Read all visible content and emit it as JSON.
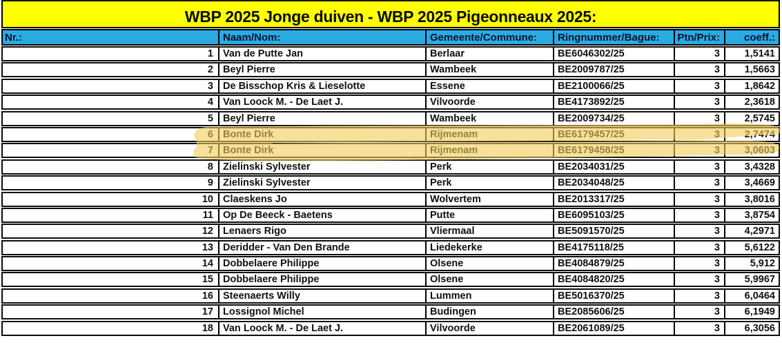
{
  "title": "WBP 2025 Jonge duiven - WBP 2025 Pigeonneaux 2025:",
  "colors": {
    "title_bg": "#FFFF00",
    "header_bg": "#29ABE2",
    "header_text": "#07122E",
    "highlighter": "#F1CD58",
    "border": "#000000"
  },
  "table": {
    "columns": [
      "Nr.:",
      "Naam/Nom:",
      "Gemeente/Commune:",
      "Ringnummer/Bague:",
      "Ptn/Prix:",
      "coeff.:"
    ],
    "rows": [
      {
        "nr": "1",
        "name": "Van de Putte Jan",
        "commune": "Berlaar",
        "ring": "BE6046302/25",
        "ptn": "3",
        "coeff": "1,5141",
        "highlighted": false
      },
      {
        "nr": "2",
        "name": "Beyl Pierre",
        "commune": "Wambeek",
        "ring": "BE2009787/25",
        "ptn": "3",
        "coeff": "1,5663",
        "highlighted": false
      },
      {
        "nr": "3",
        "name": "De Bisschop Kris & Lieselotte",
        "commune": "Essene",
        "ring": "BE2100066/25",
        "ptn": "3",
        "coeff": "1,8642",
        "highlighted": false
      },
      {
        "nr": "4",
        "name": "Van Loock M. - De Laet J.",
        "commune": "Vilvoorde",
        "ring": "BE4173892/25",
        "ptn": "3",
        "coeff": "2,3618",
        "highlighted": false
      },
      {
        "nr": "5",
        "name": "Beyl Pierre",
        "commune": "Wambeek",
        "ring": "BE2009734/25",
        "ptn": "3",
        "coeff": "2,5745",
        "highlighted": false
      },
      {
        "nr": "6",
        "name": "Bonte Dirk",
        "commune": "Rijmenam",
        "ring": "BE6179457/25",
        "ptn": "3",
        "coeff": "2,7474",
        "highlighted": true
      },
      {
        "nr": "7",
        "name": "Bonte Dirk",
        "commune": "Rijmenam",
        "ring": "BE6179458/25",
        "ptn": "3",
        "coeff": "3,0603",
        "highlighted": true
      },
      {
        "nr": "8",
        "name": "Zielinski Sylvester",
        "commune": "Perk",
        "ring": "BE2034031/25",
        "ptn": "3",
        "coeff": "3,4328",
        "highlighted": false
      },
      {
        "nr": "9",
        "name": "Zielinski Sylvester",
        "commune": "Perk",
        "ring": "BE2034048/25",
        "ptn": "3",
        "coeff": "3,4669",
        "highlighted": false
      },
      {
        "nr": "10",
        "name": "Claeskens Jo",
        "commune": "Wolvertem",
        "ring": "BE2013317/25",
        "ptn": "3",
        "coeff": "3,8016",
        "highlighted": false
      },
      {
        "nr": "11",
        "name": "Op De Beeck - Baetens",
        "commune": "Putte",
        "ring": "BE6095103/25",
        "ptn": "3",
        "coeff": "3,8754",
        "highlighted": false
      },
      {
        "nr": "12",
        "name": "Lenaers Rigo",
        "commune": "Vliermaal",
        "ring": "BE5091570/25",
        "ptn": "3",
        "coeff": "4,2971",
        "highlighted": false
      },
      {
        "nr": "13",
        "name": "Deridder - Van Den Brande",
        "commune": "Liedekerke",
        "ring": "BE4175118/25",
        "ptn": "3",
        "coeff": "5,6122",
        "highlighted": false
      },
      {
        "nr": "14",
        "name": "Dobbelaere Philippe",
        "commune": "Olsene",
        "ring": "BE4084879/25",
        "ptn": "3",
        "coeff": "5,912",
        "highlighted": false
      },
      {
        "nr": "15",
        "name": "Dobbelaere Philippe",
        "commune": "Olsene",
        "ring": "BE4084820/25",
        "ptn": "3",
        "coeff": "5,9967",
        "highlighted": false
      },
      {
        "nr": "16",
        "name": "Steenaerts Willy",
        "commune": "Lummen",
        "ring": "BE5016370/25",
        "ptn": "3",
        "coeff": "6,0464",
        "highlighted": false
      },
      {
        "nr": "17",
        "name": "Lossignol Michel",
        "commune": "Budingen",
        "ring": "BE2085606/25",
        "ptn": "3",
        "coeff": "6,1949",
        "highlighted": false
      },
      {
        "nr": "18",
        "name": "Van Loock M. - De Laet J.",
        "commune": "Vilvoorde",
        "ring": "BE2061089/25",
        "ptn": "3",
        "coeff": "6,3056",
        "highlighted": false
      }
    ]
  }
}
